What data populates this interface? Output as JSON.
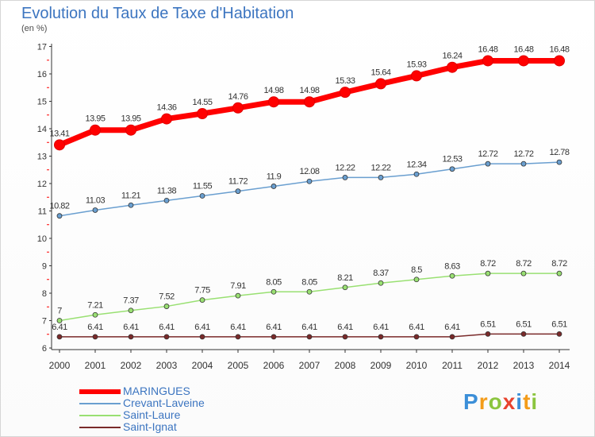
{
  "title": "Evolution du Taux de Taxe d'Habitation",
  "subtitle": "(en %)",
  "chart_data": {
    "type": "line",
    "title": "Evolution du Taux de Taxe d'Habitation",
    "ylabel": "(en %)",
    "xlabel": "",
    "categories": [
      "2000",
      "2001",
      "2002",
      "2003",
      "2004",
      "2005",
      "2006",
      "2007",
      "2008",
      "2009",
      "2010",
      "2011",
      "2012",
      "2013",
      "2014"
    ],
    "ylim": [
      6,
      17
    ],
    "yticks": [
      "6",
      "7",
      "8",
      "9",
      "10",
      "11",
      "12",
      "13",
      "14",
      "15",
      "16",
      "17"
    ],
    "grid": false,
    "legend_position": "bottom-left",
    "series": [
      {
        "name": "MARINGUES",
        "color": "#ff0000",
        "values": [
          13.41,
          13.95,
          13.95,
          14.36,
          14.55,
          14.76,
          14.98,
          14.98,
          15.33,
          15.64,
          15.93,
          16.24,
          16.48,
          16.48,
          16.48
        ],
        "labels": [
          "13.41",
          "13.95",
          "13.95",
          "14.36",
          "14.55",
          "14.76",
          "14.98",
          "14.98",
          "15.33",
          "15.64",
          "15.93",
          "16.24",
          "16.48",
          "16.48",
          "16.48"
        ]
      },
      {
        "name": "Crevant-Laveine",
        "color": "#6a9fd0",
        "values": [
          10.82,
          11.03,
          11.21,
          11.38,
          11.55,
          11.72,
          11.9,
          12.08,
          12.22,
          12.22,
          12.34,
          12.53,
          12.72,
          12.72,
          12.78
        ],
        "labels": [
          "10.82",
          "11.03",
          "11.21",
          "11.38",
          "11.55",
          "11.72",
          "11.9",
          "12.08",
          "12.22",
          "12.22",
          "12.34",
          "12.53",
          "12.72",
          "12.72",
          "12.78"
        ]
      },
      {
        "name": "Saint-Laure",
        "color": "#99e072",
        "values": [
          7,
          7.21,
          7.37,
          7.52,
          7.75,
          7.91,
          8.05,
          8.05,
          8.21,
          8.37,
          8.5,
          8.63,
          8.72,
          8.72,
          8.72
        ],
        "labels": [
          "7",
          "7.21",
          "7.37",
          "7.52",
          "7.75",
          "7.91",
          "8.05",
          "8.05",
          "8.21",
          "8.37",
          "8.5",
          "8.63",
          "8.72",
          "8.72",
          "8.72"
        ]
      },
      {
        "name": "Saint-Ignat",
        "color": "#7a2a2a",
        "values": [
          6.41,
          6.41,
          6.41,
          6.41,
          6.41,
          6.41,
          6.41,
          6.41,
          6.41,
          6.41,
          6.41,
          6.41,
          6.51,
          6.51,
          6.51
        ],
        "labels": [
          "6.41",
          "6.41",
          "6.41",
          "6.41",
          "6.41",
          "6.41",
          "6.41",
          "6.41",
          "6.41",
          "6.41",
          "6.41",
          "6.41",
          "6.51",
          "6.51",
          "6.51"
        ]
      }
    ]
  },
  "legend": {
    "items": [
      "MARINGUES",
      "Crevant-Laveine",
      "Saint-Laure",
      "Saint-Ignat"
    ]
  },
  "logo": {
    "letters": [
      "P",
      "r",
      "o",
      "x",
      "i",
      "t",
      "i"
    ],
    "colors": [
      "#3c8fd8",
      "#f39c1a",
      "#8bc53f",
      "#e8432e",
      "#3c8fd8",
      "#f39c1a",
      "#8bc53f"
    ]
  }
}
